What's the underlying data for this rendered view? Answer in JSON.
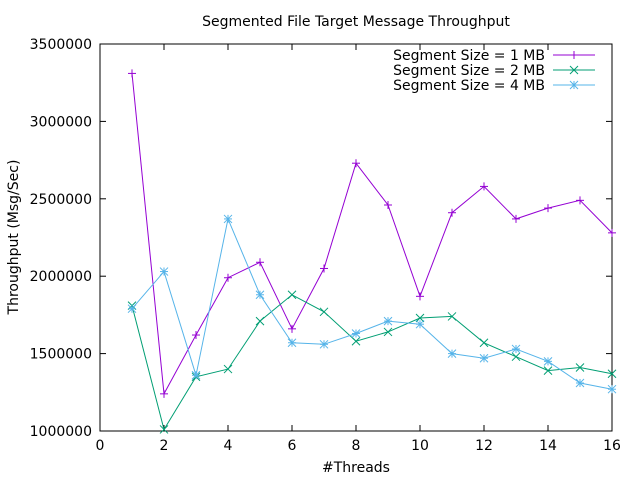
{
  "chart_data": {
    "type": "line",
    "title": "Segmented File Target Message Throughput",
    "xlabel": "#Threads",
    "ylabel": "Throughput (Msg/Sec)",
    "xlim": [
      0,
      16
    ],
    "ylim": [
      1000000,
      3500000
    ],
    "x_ticks": [
      0,
      2,
      4,
      6,
      8,
      10,
      12,
      14,
      16
    ],
    "y_ticks": [
      1000000,
      1500000,
      2000000,
      2500000,
      3000000,
      3500000
    ],
    "grid": false,
    "legend_position": "top-right",
    "x": [
      1,
      2,
      3,
      4,
      5,
      6,
      7,
      8,
      9,
      10,
      11,
      12,
      13,
      14,
      15,
      16
    ],
    "series": [
      {
        "name": "Segment Size = 1 MB",
        "color": "#9400d3",
        "marker": "plus",
        "values": [
          3310000,
          1240000,
          1620000,
          1990000,
          2090000,
          1660000,
          2050000,
          2730000,
          2460000,
          1870000,
          2410000,
          2580000,
          2370000,
          2440000,
          2490000,
          2280000
        ]
      },
      {
        "name": "Segment Size = 2 MB",
        "color": "#009e73",
        "marker": "cross",
        "values": [
          1810000,
          1010000,
          1350000,
          1400000,
          1710000,
          1880000,
          1770000,
          1580000,
          1640000,
          1730000,
          1740000,
          1570000,
          1480000,
          1390000,
          1410000,
          1370000
        ]
      },
      {
        "name": "Segment Size = 4 MB",
        "color": "#56b4e9",
        "marker": "star",
        "values": [
          1790000,
          2030000,
          1360000,
          2370000,
          1880000,
          1570000,
          1560000,
          1630000,
          1710000,
          1690000,
          1500000,
          1470000,
          1530000,
          1450000,
          1310000,
          1270000
        ]
      }
    ]
  }
}
